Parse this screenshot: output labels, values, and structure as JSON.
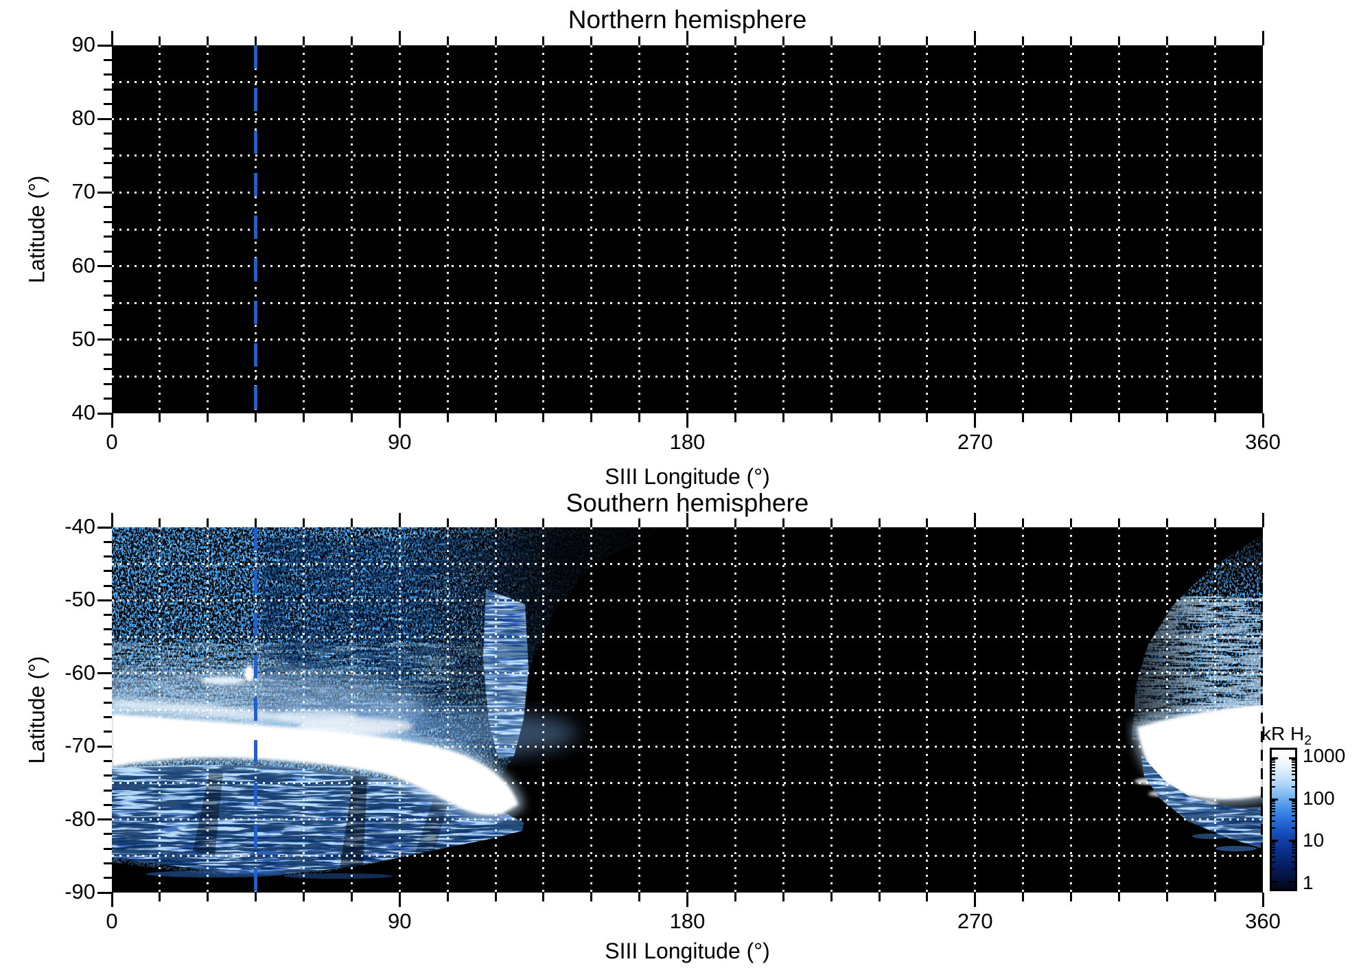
{
  "figure": {
    "background_color": "#ffffff",
    "accent_blue": "#1e60d2",
    "panels": [
      {
        "id": "north",
        "title": "Northern hemisphere",
        "xlabel": "SIII Longitude (°)",
        "ylabel": "Latitude (°)",
        "x_range": [
          0,
          360
        ],
        "y_range": [
          40,
          90
        ],
        "x_tick_values": [
          0,
          90,
          180,
          270,
          360
        ],
        "x_tick_labels": [
          "0",
          "90",
          "180",
          "270",
          "360"
        ],
        "y_tick_values": [
          90,
          80,
          70,
          60,
          50,
          40
        ],
        "y_tick_labels": [
          "90",
          "80",
          "70",
          "60",
          "50",
          "40"
        ],
        "x_minor_step": 15,
        "y_minor_step": 2,
        "x_grid_step_deg": 15,
        "y_grid_step_deg": 5,
        "marker_longitude_deg": 45
      },
      {
        "id": "south",
        "title": "Southern hemisphere",
        "xlabel": "SIII Longitude (°)",
        "ylabel": "Latitude (°)",
        "x_range": [
          0,
          360
        ],
        "y_range": [
          -90,
          -40
        ],
        "x_tick_values": [
          0,
          90,
          180,
          270,
          360
        ],
        "x_tick_labels": [
          "0",
          "90",
          "180",
          "270",
          "360"
        ],
        "y_tick_values": [
          -40,
          -50,
          -60,
          -70,
          -80,
          -90
        ],
        "y_tick_labels": [
          "-40",
          "-50",
          "-60",
          "-70",
          "-80",
          "-90"
        ],
        "x_minor_step": 15,
        "y_minor_step": 2,
        "x_grid_step_deg": 15,
        "y_grid_step_deg": 5,
        "marker_longitude_deg": 45
      }
    ],
    "colorbar": {
      "title_main": "kR H",
      "title_sub": "2",
      "tick_labels": [
        "1000",
        "100",
        "10",
        "1"
      ],
      "tick_values": [
        1000,
        100,
        10,
        1
      ]
    }
  },
  "chart_data": [
    {
      "type": "heatmap",
      "title": "Northern hemisphere",
      "xlabel": "SIII Longitude (°)",
      "ylabel": "Latitude (°)",
      "x_range": [
        0,
        360
      ],
      "y_range": [
        40,
        90
      ],
      "x_ticks": [
        0,
        90,
        180,
        270,
        360
      ],
      "y_ticks": [
        40,
        50,
        60,
        70,
        80,
        90
      ],
      "grid": "white dotted, every 15 deg longitude and 5 deg latitude",
      "colormap": "black to blue to white, logarithmic",
      "value_units": "kR H2",
      "value_range": [
        1,
        1000
      ],
      "reference_line": {
        "longitude_deg": 45,
        "style": "blue dashed vertical line"
      },
      "content_summary": "No detectable auroral emission; entire map at background level (black, below 1 kR)."
    },
    {
      "type": "heatmap",
      "title": "Southern hemisphere",
      "xlabel": "SIII Longitude (°)",
      "ylabel": "Latitude (°)",
      "x_range": [
        0,
        360
      ],
      "y_range": [
        -90,
        -40
      ],
      "x_ticks": [
        0,
        90,
        180,
        270,
        360
      ],
      "y_ticks": [
        -90,
        -80,
        -70,
        -60,
        -50,
        -40
      ],
      "grid": "white dotted, every 15 deg longitude and 5 deg latitude",
      "colormap": "black to blue to white, logarithmic",
      "value_units": "kR H2",
      "value_range": [
        1,
        1000
      ],
      "reference_line": {
        "longitude_deg": 45,
        "style": "blue dashed vertical line"
      },
      "features": [
        {
          "name": "diffuse speckled H2 emission field",
          "longitude_deg": [
            0,
            140
          ],
          "latitude_deg": [
            -86,
            -40
          ],
          "intensity_kR": [
            1,
            100
          ]
        },
        {
          "name": "saturated main auroral band",
          "longitude_deg": [
            0,
            127
          ],
          "latitude_deg": [
            -77,
            -65
          ],
          "intensity_kR": ">1000",
          "shape": "white band near -67 deg at longitude 0 descending to about -76 deg by longitude 125"
        },
        {
          "name": "bright spot",
          "longitude_deg": 43,
          "latitude_deg": -60,
          "intensity_kR": ">1000"
        },
        {
          "name": "striated fan below main band",
          "longitude_deg": [
            0,
            130
          ],
          "latitude_deg": [
            -87,
            -74
          ],
          "intensity_kR": [
            10,
            300
          ]
        },
        {
          "name": "vertical ray striations",
          "longitude_deg": [
            116,
            130
          ],
          "latitude_deg": [
            -75,
            -48
          ],
          "intensity_kR": [
            5,
            100
          ]
        },
        {
          "name": "speckled emission wedge",
          "longitude_deg": [
            308,
            360
          ],
          "latitude_deg": [
            -62,
            -41
          ],
          "intensity_kR": [
            1,
            50
          ]
        },
        {
          "name": "saturated auroral patch",
          "longitude_deg": [
            318,
            360
          ],
          "latitude_deg": [
            -79,
            -64
          ],
          "intensity_kR": ">1000"
        },
        {
          "name": "striated fan below patch",
          "longitude_deg": [
            322,
            360
          ],
          "latitude_deg": [
            -85,
            -75
          ],
          "intensity_kR": [
            10,
            300
          ]
        },
        {
          "name": "background, no emission",
          "longitude_deg": [
            140,
            308
          ],
          "latitude_deg": [
            -90,
            -40
          ],
          "intensity_kR": "<1"
        }
      ]
    }
  ]
}
